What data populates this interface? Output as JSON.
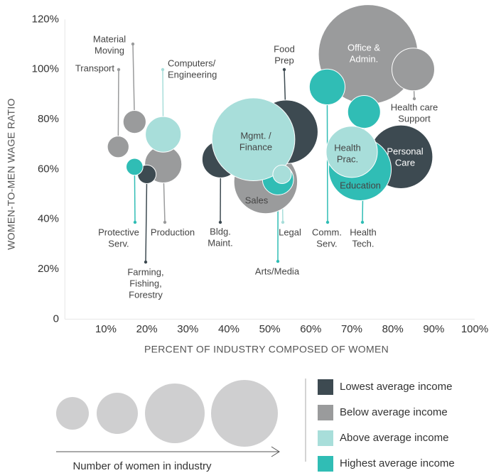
{
  "chart_data": {
    "type": "bubble",
    "xlabel": "PERCENT OF INDUSTRY COMPOSED OF WOMEN",
    "ylabel": "WOMEN-TO-MEN WAGE RATIO",
    "xlim": [
      0,
      100
    ],
    "ylim": [
      0,
      120
    ],
    "xticks": [
      {
        "value": 10,
        "label": "10%"
      },
      {
        "value": 20,
        "label": "20%"
      },
      {
        "value": 30,
        "label": "30%"
      },
      {
        "value": 40,
        "label": "40%"
      },
      {
        "value": 50,
        "label": "50%"
      },
      {
        "value": 60,
        "label": "60%"
      },
      {
        "value": 70,
        "label": "70%"
      },
      {
        "value": 80,
        "label": "80%"
      },
      {
        "value": 90,
        "label": "90%"
      },
      {
        "value": 100,
        "label": "100%"
      }
    ],
    "yticks": [
      0,
      {
        "value": 20,
        "label": "20%"
      },
      {
        "value": 40,
        "label": "40%"
      },
      {
        "value": 60,
        "label": "60%"
      },
      {
        "value": 80,
        "label": "80%"
      },
      {
        "value": 100,
        "label": "100%"
      },
      {
        "value": 120,
        "label": "120%"
      }
    ],
    "size_legend_title": "Number of women in industry",
    "series": [
      {
        "name": "Lowest average income",
        "color": "#3d4a51",
        "x": [
          20,
          38,
          54,
          82
        ],
        "y": [
          58,
          64,
          75,
          65
        ],
        "sizes": [
          1.7,
          6.8,
          20,
          20
        ],
        "labels": [
          [
            "Farming,",
            "Fishing,",
            "Forestry"
          ],
          [
            "Bldg.",
            "Maint."
          ],
          [
            "Food",
            "Prep"
          ],
          [
            "Personal",
            "Care"
          ]
        ]
      },
      {
        "name": "Below average income",
        "color": "#9a9b9c",
        "x": [
          13,
          17,
          24,
          49,
          74,
          85
        ],
        "y": [
          69,
          79,
          62,
          55,
          106,
          100
        ],
        "sizes": [
          2.3,
          2.6,
          6.8,
          20,
          49,
          9
        ],
        "labels": [
          [
            "Transport"
          ],
          [
            "Material",
            "Moving"
          ],
          [
            "Production"
          ],
          [
            "Sales"
          ],
          [
            "Office &",
            "Admin."
          ],
          [
            "Health care",
            "Support"
          ]
        ]
      },
      {
        "name": "Above average income",
        "color": "#a8deda",
        "x": [
          24,
          46,
          53,
          70
        ],
        "y": [
          74,
          72,
          58,
          67
        ],
        "sizes": [
          6.3,
          34,
          1.7,
          13
        ],
        "labels": [
          [
            "Computers/",
            "Engineering"
          ],
          [
            "Mgmt. /",
            "Finance"
          ],
          [
            "Legal"
          ],
          [
            "Health",
            "Prac."
          ]
        ]
      },
      {
        "name": "Highest average income",
        "color": "#30bdb5",
        "x": [
          17,
          52,
          64,
          73,
          72
        ],
        "y": [
          61,
          56,
          93,
          83,
          60
        ],
        "sizes": [
          1.4,
          4.8,
          6.3,
          5.3,
          19.4
        ],
        "labels": [
          [
            "Protective",
            "Serv."
          ],
          [
            "Arts/Media"
          ],
          [
            "Comm.",
            "Serv."
          ],
          [
            "Health",
            "Tech."
          ],
          [
            "Education"
          ]
        ]
      }
    ]
  }
}
